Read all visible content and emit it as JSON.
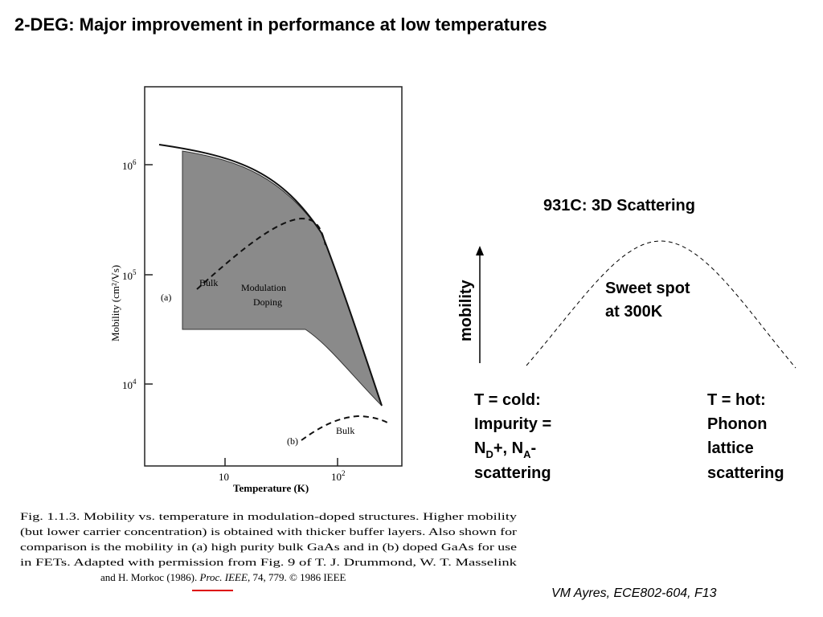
{
  "title": "2-DEG: Major improvement in performance at low temperatures",
  "figure": {
    "y_label": "Mobility (cm²/Vs)",
    "x_label": "Temperature (K)",
    "y_ticks": [
      {
        "base": "10",
        "exp": "6"
      },
      {
        "base": "10",
        "exp": "5"
      },
      {
        "base": "10",
        "exp": "4"
      }
    ],
    "x_ticks": [
      {
        "base": "10"
      },
      {
        "base": "10",
        "exp": "2"
      }
    ],
    "annotations": {
      "a": "(a)",
      "bulk_a": "Bulk",
      "mod1": "Modulation",
      "mod2": "Doping",
      "b": "(b)",
      "bulk_b": "Bulk"
    },
    "caption": [
      "Fig. 1.1.3. Mobility vs. temperature in modulation-doped structures. Higher mobility",
      "(but lower carrier concentration) is obtained with thicker buffer layers. Also shown for",
      "comparison is the mobility in (a) high purity bulk GaAs and in (b) doped GaAs for use",
      "in FETs. Adapted with permission from Fig. 9 of T. J. Drummond, W. T. Masselink"
    ],
    "caption_last": [
      "and H. Morkoc ",
      "(1986)",
      ". ",
      "Proc. IEEE",
      ", 74, 779. © 1986 IEEE"
    ]
  },
  "sketch": {
    "title": "931C: 3D Scattering",
    "axis": "mobility",
    "peak": [
      "Sweet spot",
      "at 300K"
    ],
    "cold": {
      "line1": "T = cold:",
      "line2": "Impurity =",
      "line3": [
        "N",
        "D",
        "+, N",
        "A",
        "-"
      ],
      "line4": "scattering"
    },
    "hot": [
      "T = hot:",
      "Phonon",
      "lattice",
      "scattering"
    ]
  },
  "footer": "VM Ayres, ECE802-604, F13"
}
